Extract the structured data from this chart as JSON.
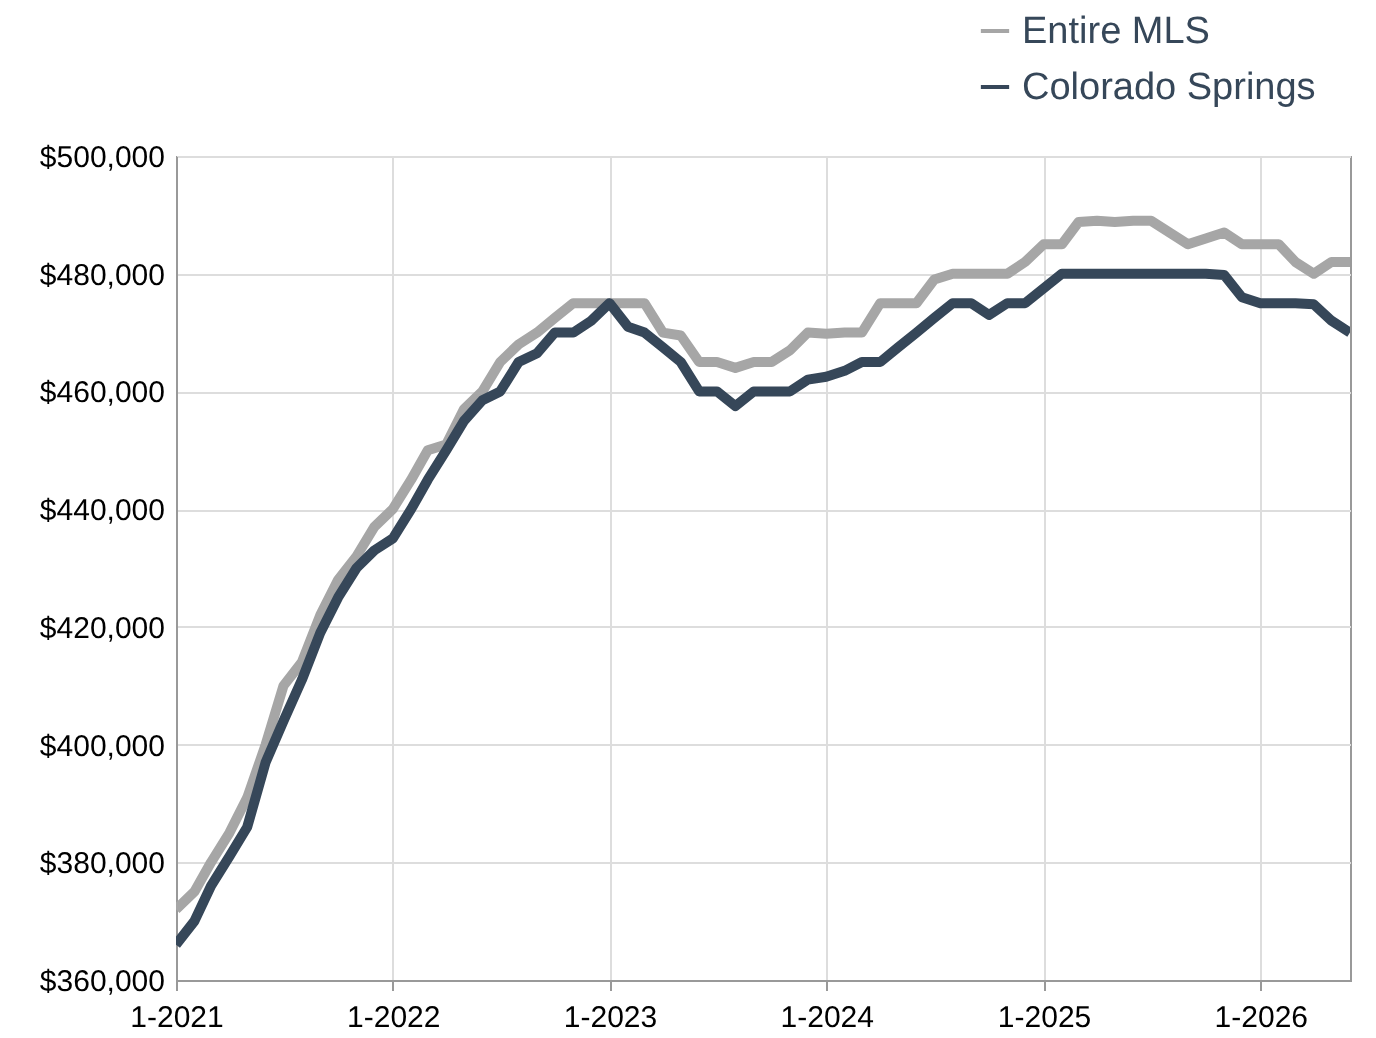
{
  "chart_data": {
    "type": "line",
    "x": [
      "2021-01",
      "2021-02",
      "2021-03",
      "2021-04",
      "2021-05",
      "2021-06",
      "2021-07",
      "2021-08",
      "2021-09",
      "2021-10",
      "2021-11",
      "2021-12",
      "2022-01",
      "2022-02",
      "2022-03",
      "2022-04",
      "2022-05",
      "2022-06",
      "2022-07",
      "2022-08",
      "2022-09",
      "2022-10",
      "2022-11",
      "2022-12",
      "2023-01",
      "2023-02",
      "2023-03",
      "2023-04",
      "2023-05",
      "2023-06",
      "2023-07",
      "2023-08",
      "2023-09",
      "2023-10",
      "2023-11",
      "2023-12",
      "2024-01",
      "2024-02",
      "2024-03",
      "2024-04",
      "2024-05",
      "2024-06",
      "2024-07",
      "2024-08",
      "2024-09",
      "2024-10",
      "2024-11",
      "2024-12",
      "2025-01",
      "2025-02",
      "2025-03",
      "2025-04",
      "2025-05",
      "2025-06",
      "2025-07",
      "2025-08",
      "2025-09",
      "2025-10",
      "2025-11",
      "2025-12",
      "2026-01",
      "2026-02",
      "2026-03",
      "2026-04",
      "2026-05",
      "2026-06"
    ],
    "series": [
      {
        "name": "Entire MLS",
        "color": "#a6a6a6",
        "values": [
          372000,
          375000,
          380000,
          385000,
          391000,
          400000,
          410000,
          414000,
          422000,
          428000,
          432000,
          437000,
          440000,
          445000,
          450000,
          451000,
          457000,
          460000,
          465000,
          468000,
          470000,
          472500,
          475000,
          475000,
          475000,
          475000,
          475000,
          470000,
          469500,
          465000,
          465000,
          464000,
          465000,
          465000,
          467000,
          470000,
          469800,
          470000,
          470000,
          475000,
          475000,
          475000,
          479000,
          480000,
          480000,
          480000,
          480000,
          482000,
          485000,
          485000,
          488800,
          489000,
          488800,
          489000,
          489000,
          487000,
          485000,
          486000,
          487000,
          485000,
          485000,
          485000,
          482000,
          480000,
          482000,
          482000
        ]
      },
      {
        "name": "Colorado Springs",
        "color": "#364759",
        "values": [
          366000,
          370000,
          376000,
          381000,
          386000,
          397000,
          404000,
          411000,
          419000,
          425000,
          430000,
          433000,
          435000,
          440000,
          445000,
          450000,
          455000,
          458500,
          460000,
          465000,
          466500,
          470000,
          470000,
          472000,
          475000,
          471000,
          470000,
          467500,
          465000,
          460000,
          460000,
          457500,
          460000,
          460000,
          460000,
          462000,
          462500,
          463500,
          465000,
          465000,
          467500,
          470000,
          472500,
          475000,
          475000,
          473000,
          475000,
          475000,
          477500,
          480000,
          480000,
          480000,
          480000,
          480000,
          480000,
          480000,
          480000,
          480000,
          479800,
          476000,
          475000,
          475000,
          475000,
          474800,
          472000,
          470000
        ]
      }
    ],
    "xlim": [
      "2021-01",
      "2026-06"
    ],
    "xticks": [
      {
        "value": "2021-01",
        "label": "1-2021"
      },
      {
        "value": "2022-01",
        "label": "1-2022"
      },
      {
        "value": "2023-01",
        "label": "1-2023"
      },
      {
        "value": "2024-01",
        "label": "1-2024"
      },
      {
        "value": "2025-01",
        "label": "1-2025"
      },
      {
        "value": "2026-01",
        "label": "1-2026"
      }
    ],
    "ylim": [
      360000,
      500000
    ],
    "yticks": [
      {
        "value": 360000,
        "label": "$360,000"
      },
      {
        "value": 380000,
        "label": "$380,000"
      },
      {
        "value": 400000,
        "label": "$400,000"
      },
      {
        "value": 420000,
        "label": "$420,000"
      },
      {
        "value": 440000,
        "label": "$440,000"
      },
      {
        "value": 460000,
        "label": "$460,000"
      },
      {
        "value": 480000,
        "label": "$480,000"
      },
      {
        "value": 500000,
        "label": "$500,000"
      }
    ],
    "grid": true,
    "legend": "top right",
    "line_style": "solid"
  }
}
